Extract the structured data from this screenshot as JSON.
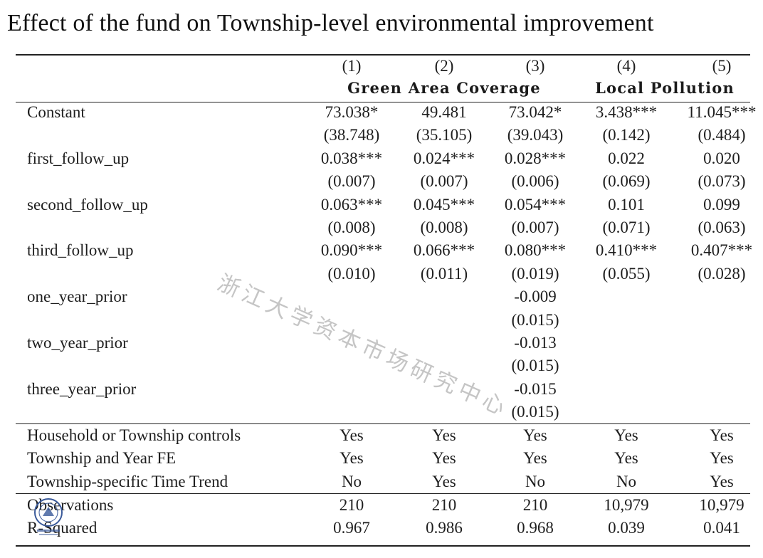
{
  "title": "Effect of the fund on Township-level environmental improvement",
  "column_numbers": [
    "(1)",
    "(2)",
    "(3)",
    "(4)",
    "(5)"
  ],
  "groups": [
    {
      "label": "Green Area Coverage"
    },
    {
      "label": "Local Pollution"
    }
  ],
  "coef_rows": [
    {
      "label": "Constant",
      "values": [
        "73.038*",
        "49.481",
        "73.042*",
        "3.438***",
        "11.045***"
      ],
      "se": [
        "(38.748)",
        "(35.105)",
        "(39.043)",
        "(0.142)",
        "(0.484)"
      ]
    },
    {
      "label": "first_follow_up",
      "values": [
        "0.038***",
        "0.024***",
        "0.028***",
        "0.022",
        "0.020"
      ],
      "se": [
        "(0.007)",
        "(0.007)",
        "(0.006)",
        "(0.069)",
        "(0.073)"
      ]
    },
    {
      "label": "second_follow_up",
      "values": [
        "0.063***",
        "0.045***",
        "0.054***",
        "0.101",
        "0.099"
      ],
      "se": [
        "(0.008)",
        "(0.008)",
        "(0.007)",
        "(0.071)",
        "(0.063)"
      ]
    },
    {
      "label": "third_follow_up",
      "values": [
        "0.090***",
        "0.066***",
        "0.080***",
        "0.410***",
        "0.407***"
      ],
      "se": [
        "(0.010)",
        "(0.011)",
        "(0.019)",
        "(0.055)",
        "(0.028)"
      ]
    },
    {
      "label": "one_year_prior",
      "values": [
        "",
        "",
        "-0.009",
        "",
        ""
      ],
      "se": [
        "",
        "",
        "(0.015)",
        "",
        ""
      ]
    },
    {
      "label": "two_year_prior",
      "values": [
        "",
        "",
        "-0.013",
        "",
        ""
      ],
      "se": [
        "",
        "",
        "(0.015)",
        "",
        ""
      ]
    },
    {
      "label": "three_year_prior",
      "values": [
        "",
        "",
        "-0.015",
        "",
        ""
      ],
      "se": [
        "",
        "",
        "(0.015)",
        "",
        ""
      ]
    }
  ],
  "control_rows": [
    {
      "label": "Household or Township controls",
      "values": [
        "Yes",
        "Yes",
        "Yes",
        "Yes",
        "Yes"
      ]
    },
    {
      "label": "Township and Year FE",
      "values": [
        "Yes",
        "Yes",
        "Yes",
        "Yes",
        "Yes"
      ]
    },
    {
      "label": "Township-specific Time Trend",
      "values": [
        "No",
        "Yes",
        "No",
        "No",
        "Yes"
      ]
    }
  ],
  "stat_rows": [
    {
      "label": "Observations",
      "values": [
        "210",
        "210",
        "210",
        "10,979",
        "10,979"
      ]
    },
    {
      "label": "R-Squared",
      "values": [
        "0.967",
        "0.986",
        "0.968",
        "0.039",
        "0.041"
      ]
    }
  ],
  "watermark": "浙江大学资本市场研究中心"
}
